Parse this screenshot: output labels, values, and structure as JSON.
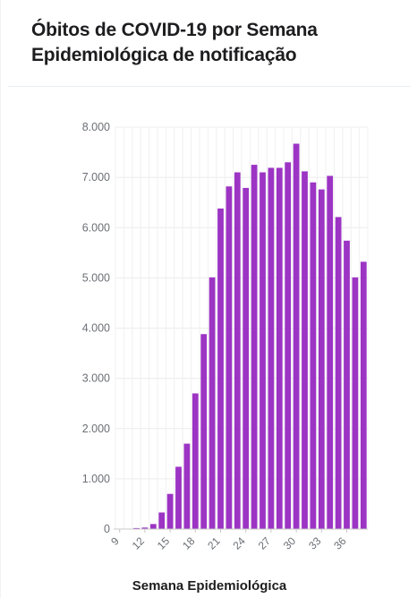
{
  "chart_data": {
    "type": "bar",
    "title": "Óbitos de COVID-19 por Semana Epidemiológica de notificação",
    "xlabel": "Semana Epidemiológica",
    "ylabel": "",
    "bar_color": "#9c34c4",
    "ylim": [
      0,
      8000
    ],
    "grid": true,
    "yticks": [
      {
        "value": 0,
        "label": "0"
      },
      {
        "value": 1000,
        "label": "1.000"
      },
      {
        "value": 2000,
        "label": "2.000"
      },
      {
        "value": 3000,
        "label": "3.000"
      },
      {
        "value": 4000,
        "label": "4.000"
      },
      {
        "value": 5000,
        "label": "5.000"
      },
      {
        "value": 6000,
        "label": "6.000"
      },
      {
        "value": 7000,
        "label": "7.000"
      },
      {
        "value": 8000,
        "label": "8.000"
      }
    ],
    "xticks": [
      "9",
      "12",
      "15",
      "18",
      "21",
      "24",
      "27",
      "30",
      "33",
      "36"
    ],
    "categories": [
      9,
      10,
      11,
      12,
      13,
      14,
      15,
      16,
      17,
      18,
      19,
      20,
      21,
      22,
      23,
      24,
      25,
      26,
      27,
      28,
      29,
      30,
      31,
      32,
      33,
      34,
      35,
      36,
      37,
      38
    ],
    "values": [
      0,
      0,
      20,
      30,
      100,
      330,
      700,
      1240,
      1700,
      2700,
      3880,
      5010,
      6380,
      6820,
      7100,
      6790,
      7250,
      7100,
      7190,
      7190,
      7300,
      7670,
      7120,
      6900,
      6760,
      7030,
      6210,
      5740,
      5010,
      5320
    ]
  }
}
